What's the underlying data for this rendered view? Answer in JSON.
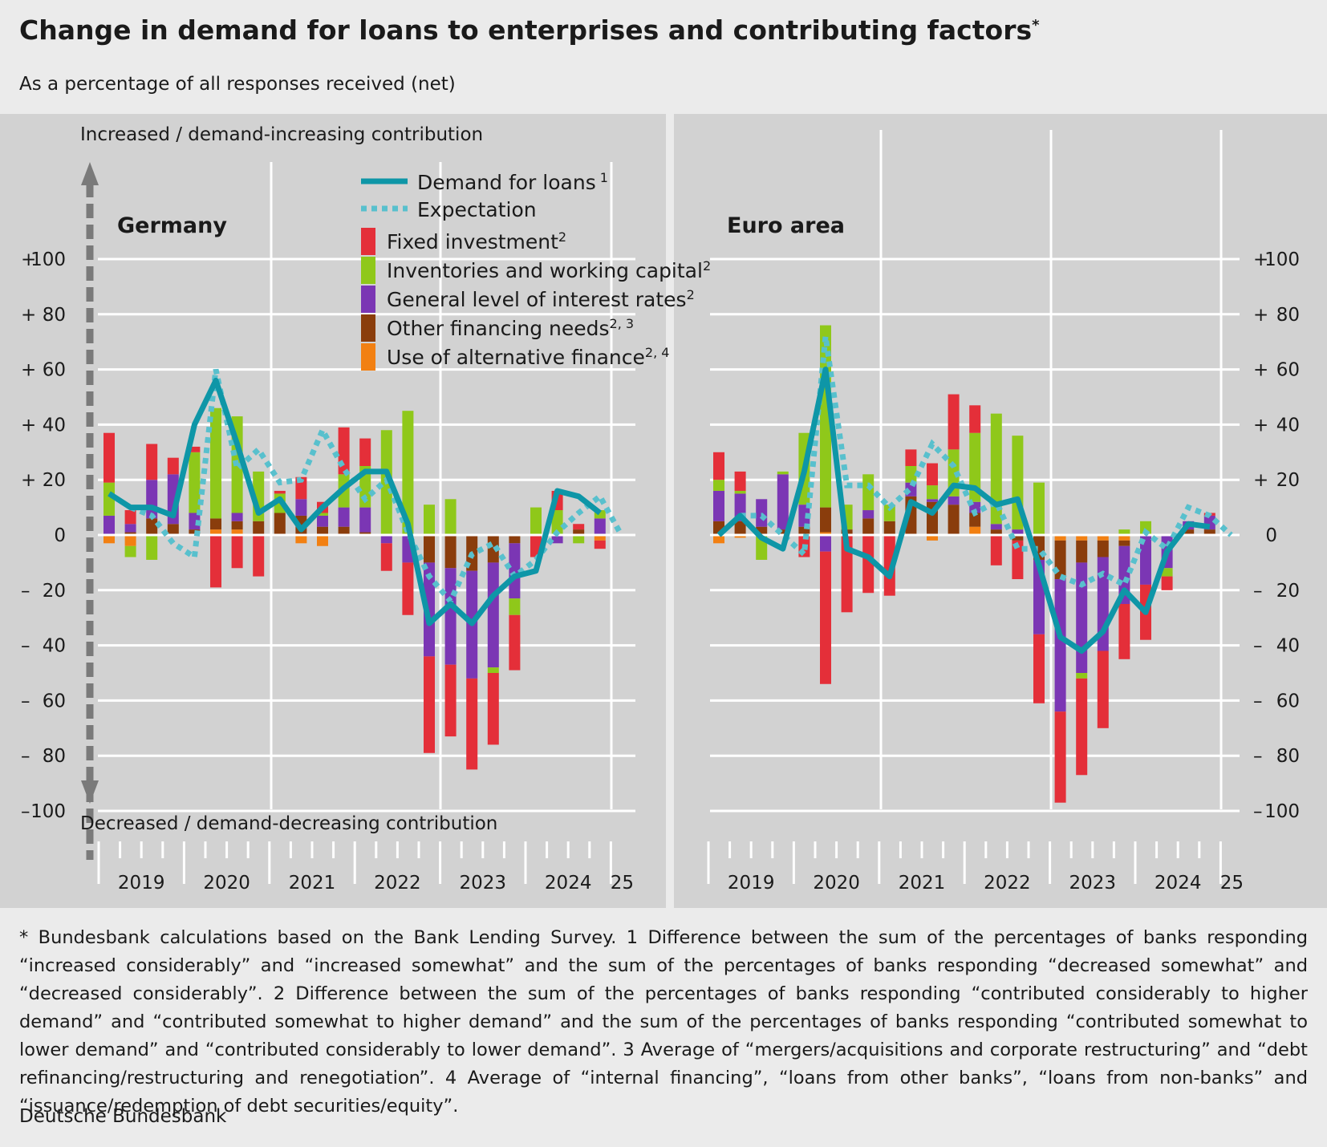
{
  "title": "Change in demand for loans to enterprises and contributing factors",
  "title_marker": "*",
  "subtitle": "As a percentage of all responses received (net)",
  "footnote": "* Bundesbank calculations based on the Bank Lending Survey. 1 Difference between the sum of the percentages of banks responding “increased considerably” and “increased somewhat” and the sum of the percentages of banks responding “decreased somewhat” and “decreased considerably”. 2 Difference between the sum of the percentages of banks responding “contributed considerably to higher demand” and “contributed somewhat to higher demand” and the sum of the percentages of banks responding “contributed somewhat to lower demand” and “contributed considerably to lower demand”. 3 Average of “mergers/acquisitions and corporate restructuring” and “debt refinancing/restructuring and renegotiation”. 4 Average of “internal financing”, “loans from other banks”, “loans from non-banks” and “issuance/redemption of debt securities/equity”.",
  "source": "Deutsche Bundesbank",
  "colors": {
    "page_bg": "#ebebeb",
    "plot_bg": "#d2d2d2",
    "grid": "#ffffff",
    "demand": "#0e96a7",
    "expectation": "#58c0cd",
    "fixed_investment": "#e42f39",
    "inventories": "#8fc81a",
    "interest_rates": "#7b36b4",
    "other_financing": "#8a3d0c",
    "alternative_finance": "#f28012",
    "arrow": "#7a7a7a"
  },
  "chart_data": {
    "type": "bar",
    "stacked": true,
    "overlay_series_type": "line",
    "ylim": [
      -100,
      100
    ],
    "yticks": [
      100,
      80,
      60,
      40,
      20,
      0,
      -20,
      -40,
      -60,
      -80,
      -100
    ],
    "ytick_labels": [
      "+100",
      "+  80",
      "+  60",
      "+  40",
      "+  20",
      "0",
      "–  20",
      "–  40",
      "–  60",
      "–  80",
      "–100"
    ],
    "axis_arrow_top_label": "Increased / demand-increasing contribution",
    "axis_arrow_bottom_label": "Decreased / demand-decreasing contribution",
    "year_labels": [
      "2019",
      "2020",
      "2021",
      "2022",
      "2023",
      "2024",
      "25"
    ],
    "quarters": [
      "2019Q1",
      "2019Q2",
      "2019Q3",
      "2019Q4",
      "2020Q1",
      "2020Q2",
      "2020Q3",
      "2020Q4",
      "2021Q1",
      "2021Q2",
      "2021Q3",
      "2021Q4",
      "2022Q1",
      "2022Q2",
      "2022Q3",
      "2022Q4",
      "2023Q1",
      "2023Q2",
      "2023Q3",
      "2023Q4",
      "2024Q1",
      "2024Q2",
      "2024Q3",
      "2024Q4",
      "2025Q1"
    ],
    "legend": {
      "demand": "Demand for loans",
      "demand_note": "1",
      "expectation": "Expectation",
      "fixed_investment": "Fixed investment",
      "fixed_investment_note": "2",
      "inventories": "Inventories and working capital",
      "inventories_note": "2",
      "interest_rates": "General level of interest rates",
      "interest_rates_note": "2",
      "other_financing": "Other financing needs",
      "other_financing_note": "2, 3",
      "alternative_finance": "Use of alternative finance",
      "alternative_finance_note": "2, 4"
    },
    "panels": [
      {
        "name": "Germany",
        "fixed_investment": [
          18,
          5,
          13,
          6,
          2,
          -19,
          -12,
          -15,
          1,
          8,
          4,
          17,
          10,
          -10,
          -19,
          -35,
          -26,
          -33,
          -26,
          -20,
          -8,
          7,
          2,
          -3,
          null
        ],
        "inventories": [
          12,
          -4,
          -9,
          0,
          22,
          40,
          35,
          18,
          7,
          0,
          1,
          12,
          15,
          38,
          45,
          11,
          13,
          0,
          -2,
          -6,
          10,
          9,
          -3,
          3,
          null
        ],
        "interest_rates": [
          7,
          3,
          14,
          18,
          6,
          0,
          3,
          0,
          0,
          6,
          4,
          7,
          9,
          -3,
          -10,
          -34,
          -35,
          -39,
          -38,
          -20,
          0,
          -3,
          0,
          6,
          null
        ],
        "other_financing": [
          0,
          1,
          6,
          4,
          2,
          4,
          3,
          5,
          8,
          7,
          3,
          3,
          1,
          0,
          0,
          -10,
          -12,
          -13,
          -10,
          -3,
          0,
          0,
          2,
          0,
          null
        ],
        "alternative_finance": [
          -3,
          -4,
          0,
          0,
          0,
          2,
          2,
          0,
          0,
          -3,
          -4,
          0,
          0,
          0,
          0,
          0,
          0,
          0,
          0,
          0,
          0,
          0,
          0,
          -2,
          null
        ],
        "demand": [
          15,
          10,
          10,
          7,
          40,
          56,
          33,
          8,
          13,
          2,
          10,
          17,
          23,
          23,
          4,
          -32,
          -25,
          -32,
          -22,
          -15,
          -13,
          16,
          14,
          8,
          null
        ],
        "expectation": [
          null,
          10,
          7,
          -3,
          -8,
          60,
          24,
          31,
          19,
          20,
          38,
          24,
          13,
          20,
          1,
          -15,
          -24,
          -7,
          -3,
          -15,
          -9,
          1,
          8,
          14,
          0
        ]
      },
      {
        "name": "Euro area",
        "fixed_investment": [
          10,
          7,
          0,
          0,
          -8,
          -48,
          -28,
          -21,
          -22,
          6,
          8,
          20,
          10,
          -11,
          -14,
          -25,
          -33,
          -35,
          -28,
          -20,
          -20,
          -5,
          0,
          1,
          null
        ],
        "inventories": [
          4,
          1,
          -9,
          1,
          26,
          66,
          9,
          13,
          6,
          6,
          5,
          17,
          25,
          40,
          34,
          19,
          0,
          -2,
          0,
          2,
          5,
          -3,
          0,
          0,
          null
        ],
        "interest_rates": [
          11,
          10,
          10,
          20,
          8,
          -6,
          0,
          3,
          0,
          5,
          1,
          3,
          4,
          2,
          2,
          -27,
          -48,
          -40,
          -34,
          -21,
          -18,
          -12,
          3,
          5,
          null
        ],
        "other_financing": [
          5,
          5,
          3,
          2,
          3,
          9,
          2,
          6,
          5,
          14,
          12,
          11,
          5,
          2,
          -2,
          -9,
          -14,
          -8,
          -6,
          -2,
          0,
          0,
          2,
          2,
          null
        ],
        "alternative_finance": [
          -3,
          -1,
          0,
          0,
          0,
          1,
          0,
          0,
          0,
          0,
          -2,
          0,
          3,
          0,
          0,
          0,
          -2,
          -2,
          -2,
          -2,
          0,
          0,
          0,
          0,
          null
        ],
        "demand": [
          0,
          7,
          -1,
          -5,
          23,
          60,
          -5,
          -8,
          -15,
          12,
          8,
          18,
          17,
          11,
          13,
          -11,
          -37,
          -42,
          -35,
          -20,
          -28,
          -6,
          4,
          3,
          null
        ],
        "expectation": [
          null,
          7,
          7,
          0,
          -7,
          72,
          18,
          18,
          10,
          17,
          33,
          25,
          8,
          12,
          -5,
          -5,
          -15,
          -18,
          -14,
          -18,
          1,
          -5,
          10,
          7,
          0
        ]
      }
    ]
  }
}
